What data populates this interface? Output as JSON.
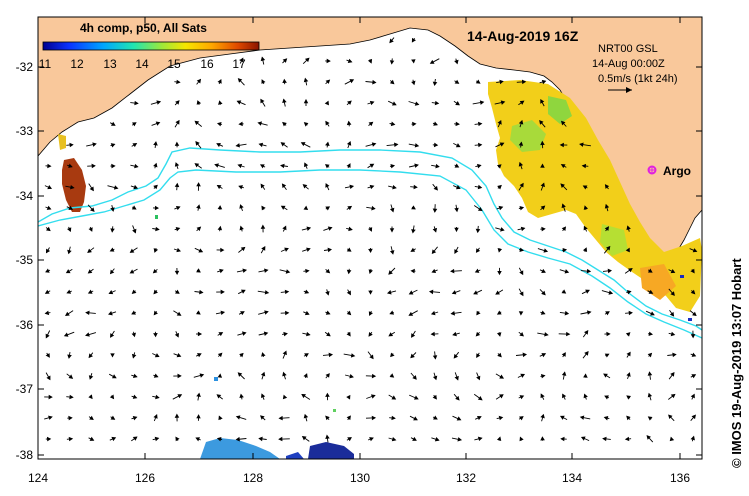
{
  "title": "14-Aug-2019 16Z",
  "colorbar": {
    "label": "4h comp, p50, All Sats",
    "ticks": [
      "11",
      "12",
      "13",
      "14",
      "15",
      "16",
      "17"
    ],
    "min": 11,
    "max": 17.5
  },
  "current_legend": {
    "line1": "NRT00 GSL",
    "line2": "14-Aug 00:00Z",
    "line3": "0.5m/s (1kt 24h)"
  },
  "argo": {
    "label": "Argo",
    "lon": 135.5,
    "lat": -33.7,
    "color": "#e020e0"
  },
  "credit": "© IMOS 19-Aug-2019 13:07 Hobart",
  "axes": {
    "x_ticks": [
      "124",
      "126",
      "128",
      "130",
      "132",
      "134",
      "136"
    ],
    "y_ticks": [
      "-32",
      "-33",
      "-34",
      "-35",
      "-36",
      "-37",
      "-38"
    ],
    "lon_range": [
      124,
      136.5
    ],
    "lat_range": [
      -38.2,
      -31.4
    ]
  },
  "colors": {
    "land": "#f9c89b",
    "contour": "#33ddee",
    "ocean": "#ffffff"
  }
}
